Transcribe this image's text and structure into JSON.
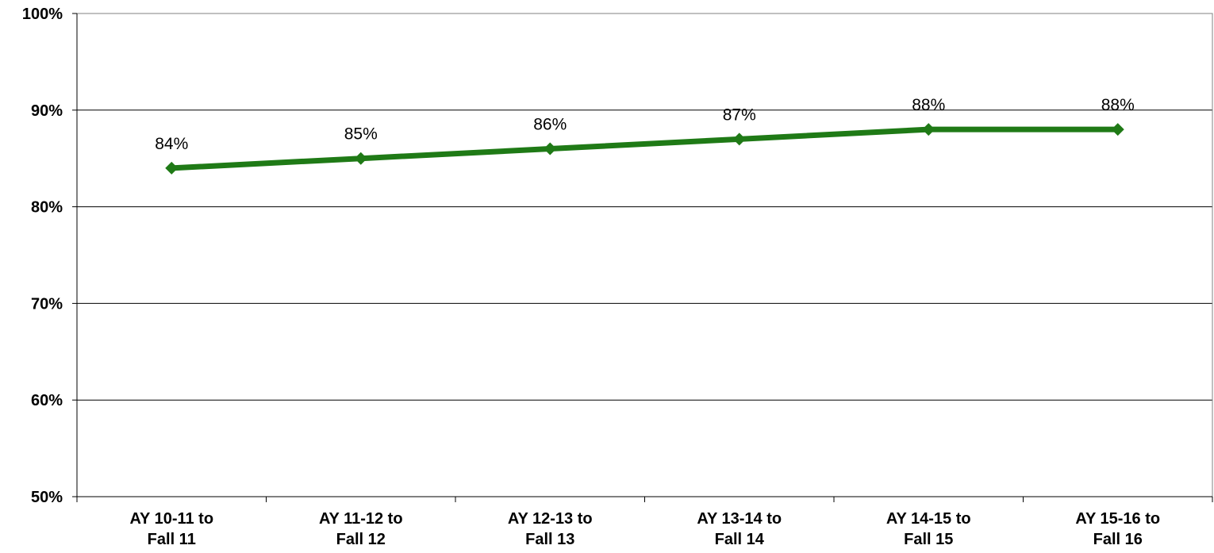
{
  "chart_data": {
    "type": "line",
    "categories": [
      [
        "AY 10-11 to",
        "Fall 11"
      ],
      [
        "AY 11-12 to",
        "Fall 12"
      ],
      [
        "AY 12-13 to",
        "Fall 13"
      ],
      [
        "AY 13-14 to",
        "Fall 14"
      ],
      [
        "AY 14-15 to",
        "Fall 15"
      ],
      [
        "AY 15-16 to",
        "Fall 16"
      ]
    ],
    "series": [
      {
        "values": [
          84,
          85,
          86,
          87,
          88,
          88
        ],
        "labels": [
          "84%",
          "85%",
          "86%",
          "87%",
          "88%",
          "88%"
        ],
        "color": "#1f7a16",
        "marker": "diamond"
      }
    ],
    "ylim": [
      50,
      100
    ],
    "yticks": [
      50,
      60,
      70,
      80,
      90,
      100
    ],
    "ytick_labels": [
      "50%",
      "60%",
      "70%",
      "80%",
      "90%",
      "100%"
    ],
    "grid": true,
    "legend": false
  }
}
